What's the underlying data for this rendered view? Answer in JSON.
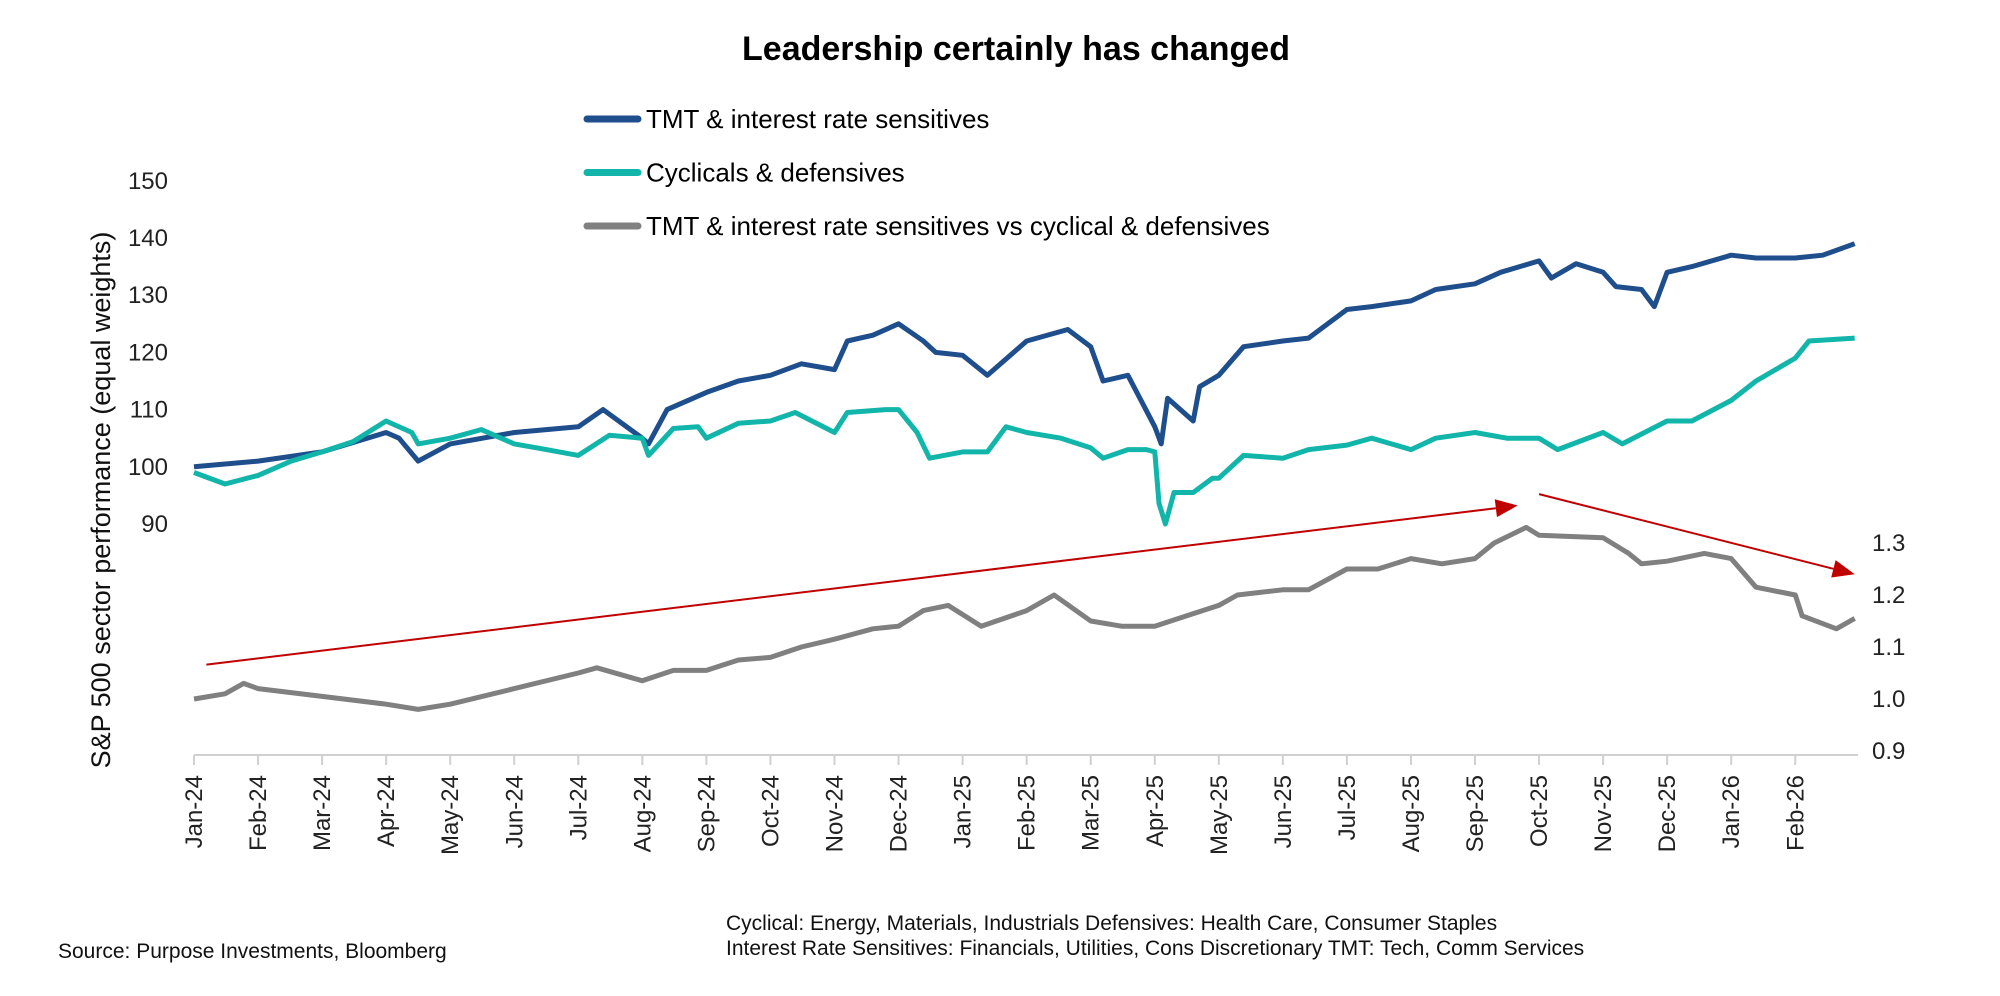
{
  "chart_data": {
    "type": "line",
    "title": "Leadership certainly has changed",
    "ylabel": "S&P 500 sector performance (equal weights)",
    "ylim": [
      50,
      150
    ],
    "yticks": [
      "90",
      "100",
      "110",
      "120",
      "130",
      "140",
      "150"
    ],
    "y2lim": [
      0.9,
      2.0
    ],
    "y2ticks": [
      "0.9",
      "1.0",
      "1.1",
      "1.2",
      "1.3"
    ],
    "xticks": [
      "Jan-24",
      "Feb-24",
      "Mar-24",
      "Apr-24",
      "May-24",
      "Jun-24",
      "Jul-24",
      "Aug-24",
      "Sep-24",
      "Oct-24",
      "Nov-24",
      "Dec-24",
      "Jan-25",
      "Feb-25",
      "Mar-25",
      "Apr-25",
      "May-25",
      "Jun-25",
      "Jul-25",
      "Aug-25",
      "Sep-25",
      "Oct-25",
      "Nov-25",
      "Dec-25",
      "Jan-26",
      "Feb-26"
    ],
    "grid": false,
    "legend_position": "top-center",
    "series": [
      {
        "name": "TMT & interest rate sensitives",
        "axis": "left",
        "color": "#1f4e8c",
        "x": [
          "2024-01-01",
          "2024-02-01",
          "2024-03-01",
          "2024-04-01",
          "2024-04-07",
          "2024-04-16",
          "2024-05-01",
          "2024-06-01",
          "2024-07-01",
          "2024-07-13",
          "2024-08-01",
          "2024-08-04",
          "2024-08-13",
          "2024-09-01",
          "2024-09-16",
          "2024-10-01",
          "2024-10-16",
          "2024-11-01",
          "2024-11-07",
          "2024-11-19",
          "2024-12-01",
          "2024-12-13",
          "2024-12-19",
          "2025-01-01",
          "2025-01-13",
          "2025-02-01",
          "2025-02-19",
          "2025-03-01",
          "2025-03-07",
          "2025-03-19",
          "2025-04-01",
          "2025-04-04",
          "2025-04-07",
          "2025-04-19",
          "2025-04-22",
          "2025-05-01",
          "2025-05-13",
          "2025-06-01",
          "2025-06-13",
          "2025-07-01",
          "2025-07-13",
          "2025-08-01",
          "2025-08-13",
          "2025-09-01",
          "2025-09-13",
          "2025-10-01",
          "2025-10-07",
          "2025-10-19",
          "2025-11-01",
          "2025-11-07",
          "2025-11-19",
          "2025-11-25",
          "2025-12-01",
          "2025-12-13",
          "2026-01-01",
          "2026-01-13",
          "2026-02-01",
          "2026-02-13",
          "2026-02-27"
        ],
        "y": [
          100,
          101,
          102.6,
          106,
          105,
          101,
          104,
          106,
          107,
          110,
          105,
          104,
          110,
          113,
          115,
          116,
          118,
          117,
          122,
          123,
          125,
          122,
          120,
          119.5,
          116,
          122,
          124,
          121,
          115,
          116,
          107,
          104,
          112,
          108,
          114,
          116,
          121,
          122,
          122.5,
          127.5,
          128,
          129,
          131,
          132,
          134,
          136,
          133,
          135.5,
          134,
          131.5,
          131,
          128,
          134,
          135,
          137,
          136.5,
          136.5,
          137,
          139
        ]
      },
      {
        "name": "Cyclicals & defensives",
        "axis": "left",
        "color": "#12b5a9",
        "x": [
          "2024-01-01",
          "2024-01-16",
          "2024-02-01",
          "2024-02-16",
          "2024-03-01",
          "2024-03-16",
          "2024-04-01",
          "2024-04-13",
          "2024-04-16",
          "2024-05-01",
          "2024-05-16",
          "2024-06-01",
          "2024-06-16",
          "2024-07-01",
          "2024-07-16",
          "2024-08-01",
          "2024-08-04",
          "2024-08-16",
          "2024-08-28",
          "2024-09-01",
          "2024-09-16",
          "2024-10-01",
          "2024-10-13",
          "2024-11-01",
          "2024-11-07",
          "2024-11-25",
          "2024-12-01",
          "2024-12-10",
          "2024-12-16",
          "2025-01-01",
          "2025-01-13",
          "2025-01-22",
          "2025-02-01",
          "2025-02-16",
          "2025-03-01",
          "2025-03-07",
          "2025-03-19",
          "2025-03-28",
          "2025-04-01",
          "2025-04-03",
          "2025-04-06",
          "2025-04-10",
          "2025-04-19",
          "2025-04-28",
          "2025-05-01",
          "2025-05-13",
          "2025-06-01",
          "2025-06-13",
          "2025-07-01",
          "2025-07-13",
          "2025-08-01",
          "2025-08-13",
          "2025-09-01",
          "2025-09-16",
          "2025-10-01",
          "2025-10-10",
          "2025-11-01",
          "2025-11-10",
          "2025-12-01",
          "2025-12-13",
          "2026-01-01",
          "2026-01-13",
          "2026-02-01",
          "2026-02-07",
          "2026-02-27"
        ],
        "y": [
          99,
          97,
          98.5,
          101,
          102.6,
          104.4,
          108,
          106,
          104,
          105,
          106.5,
          104,
          103,
          102,
          105.5,
          105,
          102,
          106.7,
          107,
          105,
          107.6,
          108,
          109.5,
          106,
          109.5,
          110,
          110,
          106,
          101.5,
          102.6,
          102.6,
          107,
          106,
          105,
          103.3,
          101.5,
          103,
          103,
          102.6,
          93.6,
          90,
          95.5,
          95.5,
          98,
          98,
          102,
          101.5,
          103,
          103.8,
          105,
          103,
          105,
          106,
          105,
          105,
          103,
          106,
          104,
          108,
          108,
          111.6,
          115,
          119,
          122,
          122.5
        ]
      },
      {
        "name": "TMT & interest rate sensitives vs cyclical & defensives",
        "axis": "right",
        "color": "#808080",
        "x": [
          "2024-01-01",
          "2024-01-16",
          "2024-01-25",
          "2024-02-01",
          "2024-03-01",
          "2024-04-01",
          "2024-04-16",
          "2024-05-01",
          "2024-06-01",
          "2024-07-01",
          "2024-07-10",
          "2024-08-01",
          "2024-08-16",
          "2024-09-01",
          "2024-09-16",
          "2024-10-01",
          "2024-10-16",
          "2024-11-01",
          "2024-11-19",
          "2024-12-01",
          "2024-12-13",
          "2024-12-25",
          "2025-01-10",
          "2025-02-01",
          "2025-02-13",
          "2025-03-01",
          "2025-03-16",
          "2025-04-01",
          "2025-04-16",
          "2025-05-01",
          "2025-05-10",
          "2025-06-01",
          "2025-06-13",
          "2025-07-01",
          "2025-07-16",
          "2025-08-01",
          "2025-08-16",
          "2025-09-01",
          "2025-09-10",
          "2025-09-25",
          "2025-10-01",
          "2025-11-01",
          "2025-11-13",
          "2025-11-19",
          "2025-12-01",
          "2025-12-19",
          "2026-01-01",
          "2026-01-13",
          "2026-02-01",
          "2026-02-04",
          "2026-02-19",
          "2026-02-27"
        ],
        "y": [
          1.0,
          1.01,
          1.03,
          1.02,
          1.005,
          0.99,
          0.98,
          0.99,
          1.02,
          1.05,
          1.06,
          1.035,
          1.055,
          1.055,
          1.075,
          1.08,
          1.1,
          1.115,
          1.135,
          1.14,
          1.17,
          1.18,
          1.14,
          1.17,
          1.2,
          1.15,
          1.14,
          1.14,
          1.16,
          1.18,
          1.2,
          1.21,
          1.21,
          1.25,
          1.25,
          1.27,
          1.26,
          1.27,
          1.3,
          1.33,
          1.315,
          1.31,
          1.28,
          1.26,
          1.265,
          1.28,
          1.27,
          1.215,
          1.2,
          1.16,
          1.135,
          1.155
        ]
      }
    ],
    "annotations": [
      {
        "type": "arrow",
        "axis": "right",
        "color": "#c00000",
        "from": [
          "2024-01-07",
          1.066
        ],
        "to": [
          "2025-09-21",
          1.372
        ]
      },
      {
        "type": "arrow",
        "axis": "right",
        "color": "#c00000",
        "from": [
          "2025-10-01",
          1.394
        ],
        "to": [
          "2026-02-27",
          1.24
        ]
      }
    ]
  },
  "footer": {
    "source": "Source: Purpose Investments, Bloomberg",
    "note_line1": "Cyclical: Energy, Materials, Industrials   Defensives: Health Care, Consumer Staples",
    "note_line2": "Interest Rate Sensitives: Financials, Utilities, Cons Discretionary   TMT: Tech, Comm Services"
  }
}
